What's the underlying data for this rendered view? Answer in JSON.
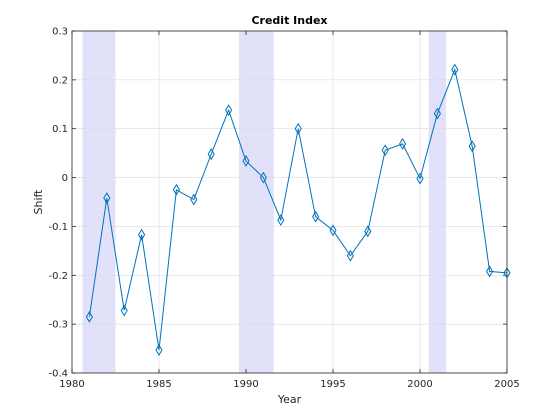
{
  "chart_data": {
    "type": "line",
    "title": "Credit Index",
    "xlabel": "Year",
    "ylabel": "Shift",
    "xlim": [
      1980,
      2005
    ],
    "ylim": [
      -0.4,
      0.3
    ],
    "x_ticks": [
      1980,
      1985,
      1990,
      1995,
      2000,
      2005
    ],
    "x_tick_labels": [
      "1980",
      "1985",
      "1990",
      "1995",
      "2000",
      "2005"
    ],
    "y_ticks": [
      -0.4,
      -0.3,
      -0.2,
      -0.1,
      0,
      0.1,
      0.2,
      0.3
    ],
    "y_tick_labels": [
      "-0.4",
      "-0.3",
      "-0.2",
      "-0.1",
      "0",
      "0.1",
      "0.2",
      "0.3"
    ],
    "grid": true,
    "marker": "diamond",
    "line_color": "#0072bd",
    "shade_color": "#e1e1fa",
    "recession_bands": [
      {
        "start": 1980.6,
        "end": 1982.5
      },
      {
        "start": 1989.6,
        "end": 1991.6
      },
      {
        "start": 2000.5,
        "end": 2001.5
      }
    ],
    "series": [
      {
        "x": [
          1981,
          1982,
          1983,
          1984,
          1985,
          1986,
          1987,
          1988,
          1989,
          1990,
          1991,
          1992,
          1993,
          1994,
          1995,
          1996,
          1997,
          1998,
          1999,
          2000,
          2001,
          2002,
          2003,
          2004,
          2005
        ],
        "values": [
          -0.285,
          -0.042,
          -0.272,
          -0.117,
          -0.353,
          -0.025,
          -0.045,
          0.048,
          0.138,
          0.034,
          0.0,
          -0.087,
          0.1,
          -0.08,
          -0.108,
          -0.16,
          -0.11,
          0.056,
          0.069,
          -0.002,
          0.131,
          0.221,
          0.064,
          -0.192,
          -0.195
        ]
      }
    ]
  }
}
